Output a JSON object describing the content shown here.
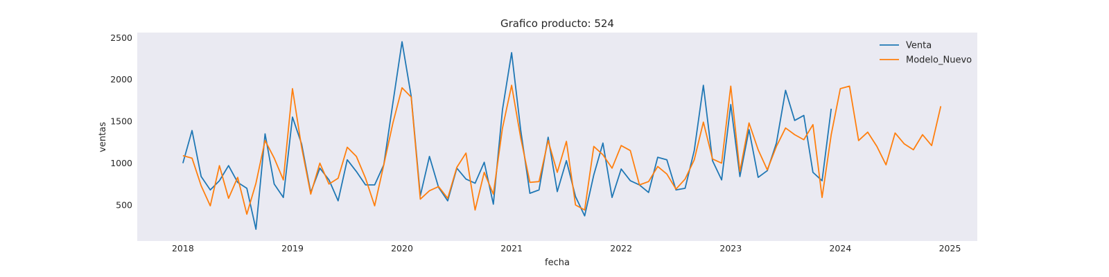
{
  "chart_data": {
    "type": "line",
    "title": "Grafico producto: 524",
    "xlabel": "fecha",
    "ylabel": "ventas",
    "xlim": [
      "2017-08-01",
      "2025-04-01"
    ],
    "ylim": [
      70,
      2560
    ],
    "x_ticks": [
      "2018",
      "2019",
      "2020",
      "2021",
      "2022",
      "2023",
      "2024",
      "2025"
    ],
    "y_ticks": [
      500,
      1000,
      1500,
      2000,
      2500
    ],
    "grid": false,
    "background": "#eaeaf2",
    "legend": {
      "position": "top-right"
    },
    "series": [
      {
        "name": "Venta",
        "color": "#1f77b4",
        "start": "2018-01",
        "values": [
          1000,
          1390,
          840,
          680,
          790,
          970,
          770,
          700,
          210,
          1350,
          750,
          590,
          1550,
          1230,
          650,
          940,
          800,
          550,
          1040,
          900,
          740,
          740,
          980,
          1720,
          2450,
          1800,
          610,
          1080,
          710,
          550,
          940,
          810,
          760,
          1010,
          510,
          1640,
          2320,
          1390,
          640,
          680,
          1310,
          660,
          1030,
          600,
          370,
          860,
          1240,
          590,
          930,
          790,
          740,
          650,
          1070,
          1040,
          680,
          700,
          1150,
          1930,
          1030,
          800,
          1700,
          840,
          1400,
          830,
          910,
          1240,
          1870,
          1510,
          1570,
          890,
          790,
          1650
        ]
      },
      {
        "name": "Modelo_Nuevo",
        "color": "#ff7f0e",
        "start": "2018-01",
        "values": [
          1090,
          1060,
          730,
          490,
          970,
          580,
          830,
          390,
          760,
          1270,
          1060,
          800,
          1890,
          1190,
          630,
          1000,
          750,
          820,
          1190,
          1080,
          820,
          490,
          980,
          1480,
          1900,
          1790,
          570,
          670,
          720,
          580,
          950,
          1120,
          440,
          890,
          630,
          1420,
          1930,
          1300,
          770,
          780,
          1270,
          890,
          1260,
          500,
          440,
          1200,
          1100,
          940,
          1210,
          1150,
          740,
          780,
          960,
          870,
          690,
          810,
          1040,
          1490,
          1050,
          1000,
          1920,
          900,
          1480,
          1160,
          920,
          1200,
          1420,
          1340,
          1280,
          1460,
          590,
          1340,
          1890,
          1920,
          1270,
          1370,
          1200,
          980,
          1360,
          1230,
          1160,
          1340,
          1210,
          1680
        ]
      }
    ]
  }
}
